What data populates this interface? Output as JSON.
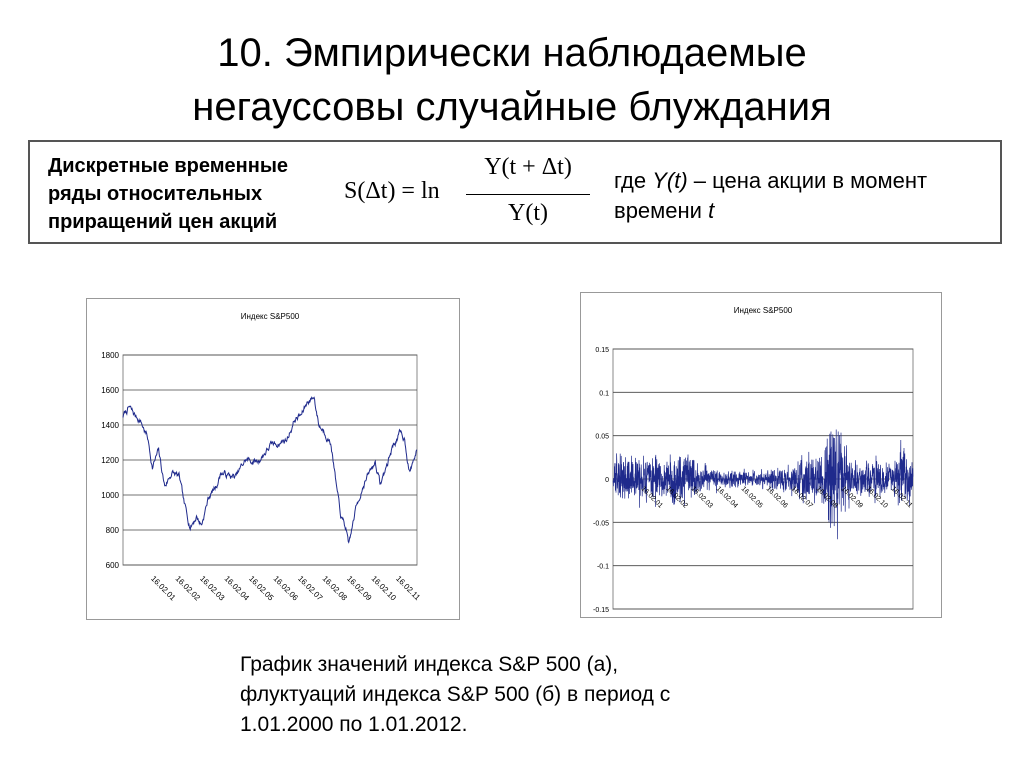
{
  "slide": {
    "title_line1": "10. Эмпирически наблюдаемые",
    "title_line2": "негауссовы случайные блуждания"
  },
  "definition": {
    "label_line1": "Дискретные временные",
    "label_line2": "ряды относительных",
    "label_line3": "приращений цен акций",
    "formula_lhs": "S(Δt) = ln",
    "formula_num": "Y(t + Δt)",
    "formula_den": "Y(t)",
    "note_prefix": "где ",
    "note_var": "Y(t)",
    "note_middle": " – цена акции в момент",
    "note_line2_prefix": "времени ",
    "note_line2_var": "t"
  },
  "caption": {
    "line1": "График значений индекса S&P 500 (а),",
    "line2": "флуктуаций индекса S&P 500 (б) в период с",
    "line3": "1.01.2000 по 1.01.2012."
  },
  "chart_data": [
    {
      "type": "line",
      "title": "Индекс S&P500",
      "ylim": [
        600,
        1800
      ],
      "yticks": [
        "600",
        "800",
        "1000",
        "1200",
        "1400",
        "1600",
        "1800"
      ],
      "grid": true,
      "series_color": "#1f2a8c",
      "categories": [
        "16.02.01",
        "16.02.02",
        "16.02.03",
        "16.02.04",
        "16.02.05",
        "16.02.06",
        "16.02.07",
        "16.02.08",
        "16.02.09",
        "16.02.10",
        "16.02.11"
      ],
      "x_start": 2000.0,
      "x_end": 2012.0,
      "tick_positions": [
        2001.12,
        2002.12,
        2003.12,
        2004.12,
        2005.12,
        2006.12,
        2007.12,
        2008.12,
        2009.12,
        2010.12,
        2011.12
      ],
      "x": [
        2000.0,
        2000.25,
        2000.5,
        2000.7,
        2001.0,
        2001.2,
        2001.45,
        2001.7,
        2002.0,
        2002.3,
        2002.5,
        2002.75,
        2003.0,
        2003.2,
        2003.5,
        2003.8,
        2004.0,
        2004.3,
        2004.6,
        2005.0,
        2005.5,
        2006.0,
        2006.4,
        2006.7,
        2007.0,
        2007.3,
        2007.55,
        2007.8,
        2008.0,
        2008.3,
        2008.5,
        2008.75,
        2008.9,
        2009.1,
        2009.2,
        2009.5,
        2009.8,
        2010.0,
        2010.3,
        2010.5,
        2010.8,
        2011.0,
        2011.3,
        2011.5,
        2011.7,
        2012.0
      ],
      "values": [
        1450,
        1500,
        1450,
        1430,
        1330,
        1160,
        1250,
        1050,
        1130,
        1100,
        940,
        820,
        880,
        830,
        990,
        1050,
        1130,
        1110,
        1100,
        1200,
        1190,
        1280,
        1300,
        1320,
        1430,
        1460,
        1540,
        1560,
        1400,
        1350,
        1290,
        1000,
        870,
        810,
        700,
        920,
        1060,
        1110,
        1190,
        1060,
        1180,
        1280,
        1350,
        1320,
        1130,
        1260
      ]
    },
    {
      "type": "line",
      "title": "Индекс S&P500",
      "ylim": [
        -0.15,
        0.15
      ],
      "yticks": [
        "-0.15",
        "-0.1",
        "-0.05",
        "0",
        "0.05",
        "0.1",
        "0.15"
      ],
      "grid": true,
      "series_color": "#1f2a8c",
      "categories": [
        "16.02.01",
        "16.02.02",
        "16.02.03",
        "16.02.04",
        "16.02.05",
        "16.02.06",
        "16.02.07",
        "16.02.08",
        "16.02.09",
        "16.02.10",
        "16.02.11"
      ],
      "x_start": 2000.0,
      "x_end": 2012.0,
      "tick_positions": [
        2001.12,
        2002.12,
        2003.12,
        2004.12,
        2005.12,
        2006.12,
        2007.12,
        2008.12,
        2009.12,
        2010.12,
        2011.12
      ],
      "x": [
        2000.0,
        2000.5,
        2001.0,
        2001.5,
        2001.7,
        2002.0,
        2002.5,
        2002.8,
        2003.0,
        2003.5,
        2004.0,
        2004.5,
        2005.0,
        2005.5,
        2006.0,
        2006.5,
        2007.0,
        2007.3,
        2007.6,
        2007.9,
        2008.2,
        2008.5,
        2008.65,
        2008.75,
        2008.8,
        2008.85,
        2008.95,
        2009.1,
        2009.3,
        2009.6,
        2010.0,
        2010.4,
        2010.8,
        2011.2,
        2011.55,
        2011.65,
        2011.8,
        2012.0
      ],
      "envelope": [
        0.035,
        0.035,
        0.035,
        0.04,
        0.045,
        0.03,
        0.045,
        0.045,
        0.035,
        0.025,
        0.017,
        0.015,
        0.013,
        0.013,
        0.015,
        0.017,
        0.025,
        0.028,
        0.035,
        0.04,
        0.04,
        0.05,
        0.1,
        0.12,
        0.115,
        0.09,
        0.09,
        0.07,
        0.05,
        0.03,
        0.025,
        0.035,
        0.025,
        0.025,
        0.055,
        0.065,
        0.04,
        0.025
      ]
    }
  ]
}
